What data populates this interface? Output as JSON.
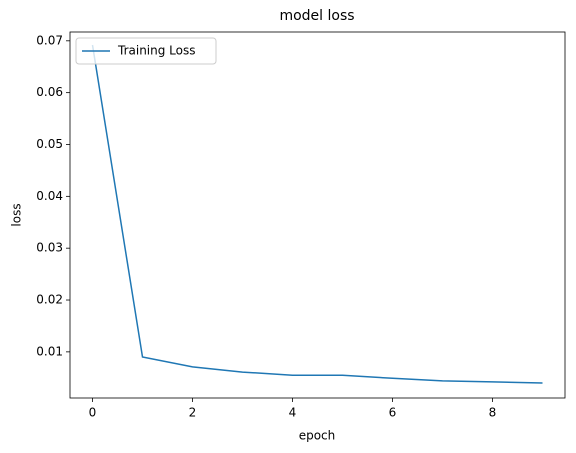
{
  "chart_data": {
    "type": "line",
    "title": "model loss",
    "xlabel": "epoch",
    "ylabel": "loss",
    "x": [
      0,
      1,
      2,
      3,
      4,
      5,
      6,
      7,
      8,
      9
    ],
    "series": [
      {
        "name": "Training Loss",
        "color": "#1f77b4",
        "values": [
          0.0692,
          0.009,
          0.0071,
          0.0061,
          0.0055,
          0.0055,
          0.0049,
          0.0044,
          0.0042,
          0.004
        ]
      }
    ],
    "xlim": [
      -0.45,
      9.45
    ],
    "xticks": [
      0,
      2,
      4,
      6,
      8
    ],
    "ylim": [
      0.0011,
      0.0717
    ],
    "yticks": [
      0.01,
      0.02,
      0.03,
      0.04,
      0.05,
      0.06,
      0.07
    ],
    "grid": false,
    "legend": "upper left"
  }
}
